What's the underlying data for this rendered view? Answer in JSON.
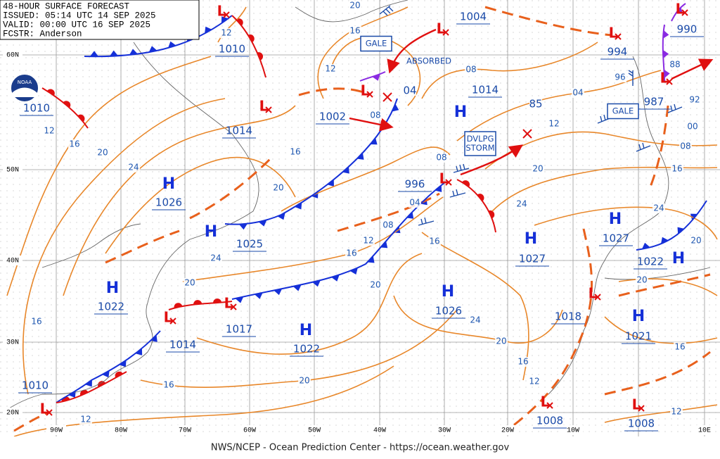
{
  "header": {
    "lines": [
      "48-HOUR SURFACE FORECAST",
      "ISSUED: 05:14 UTC 14 SEP 2025",
      "VALID:  00:00 UTC 16 SEP 2025",
      "FCSTR:  Anderson"
    ]
  },
  "logo": "NOAA",
  "highs": [
    {
      "symbol": "H",
      "pressure": "1026"
    },
    {
      "symbol": "H",
      "pressure": "1025"
    },
    {
      "symbol": "H",
      "pressure": "1022"
    },
    {
      "symbol": "H",
      "pressure": "1022"
    },
    {
      "symbol": "H",
      "pressure": "1026"
    },
    {
      "symbol": "H",
      "pressure": "1027"
    },
    {
      "symbol": "H",
      "pressure": "1027"
    },
    {
      "symbol": "H",
      "pressure": "1014"
    },
    {
      "symbol": "H",
      "pressure": "1022"
    },
    {
      "symbol": "H",
      "pressure": "1021"
    }
  ],
  "lows": [
    {
      "symbol": "L",
      "pressure": "1010"
    },
    {
      "symbol": "L",
      "pressure": "1014"
    },
    {
      "symbol": "L",
      "pressure": "1002"
    },
    {
      "symbol": "L",
      "pressure": "1004"
    },
    {
      "symbol": "L",
      "pressure": "996"
    },
    {
      "symbol": "L",
      "pressure": "1017"
    },
    {
      "symbol": "L",
      "pressure": "1014"
    },
    {
      "symbol": "L",
      "pressure": "1010"
    },
    {
      "symbol": "L",
      "pressure": "994"
    },
    {
      "symbol": "L",
      "pressure": "987"
    },
    {
      "symbol": "L",
      "pressure": "990"
    },
    {
      "symbol": "L",
      "pressure": "1018"
    },
    {
      "symbol": "L",
      "pressure": "1008"
    },
    {
      "symbol": "L",
      "pressure": "1008"
    }
  ],
  "other_pressures": [
    "1010"
  ],
  "isobar_labels": [
    "12",
    "12",
    "16",
    "20",
    "08",
    "04",
    "12",
    "20",
    "16",
    "24",
    "20",
    "16",
    "12",
    "20",
    "24",
    "08",
    "04",
    "08",
    "12",
    "16",
    "16",
    "20",
    "24",
    "20",
    "16",
    "12",
    "20",
    "16",
    "12",
    "16",
    "20",
    "24",
    "16",
    "20",
    "24",
    "20",
    "16",
    "12",
    "08",
    "04",
    "85",
    "88",
    "92",
    "96",
    "00",
    "08"
  ],
  "warnings": [
    {
      "lines": [
        "GALE"
      ]
    },
    {
      "lines": [
        "GALE"
      ]
    },
    {
      "lines": [
        "DVLPG",
        "STORM"
      ]
    }
  ],
  "notes": [
    "ABSORBED"
  ],
  "lat_labels": [
    "60N",
    "50N",
    "40N",
    "30N",
    "20N"
  ],
  "lon_labels": [
    "90W",
    "80W",
    "70W",
    "60W",
    "50W",
    "40W",
    "30W",
    "20W",
    "10W",
    "10E"
  ],
  "footer": "NWS/NCEP - Ocean Prediction Center - https://ocean.weather.gov"
}
